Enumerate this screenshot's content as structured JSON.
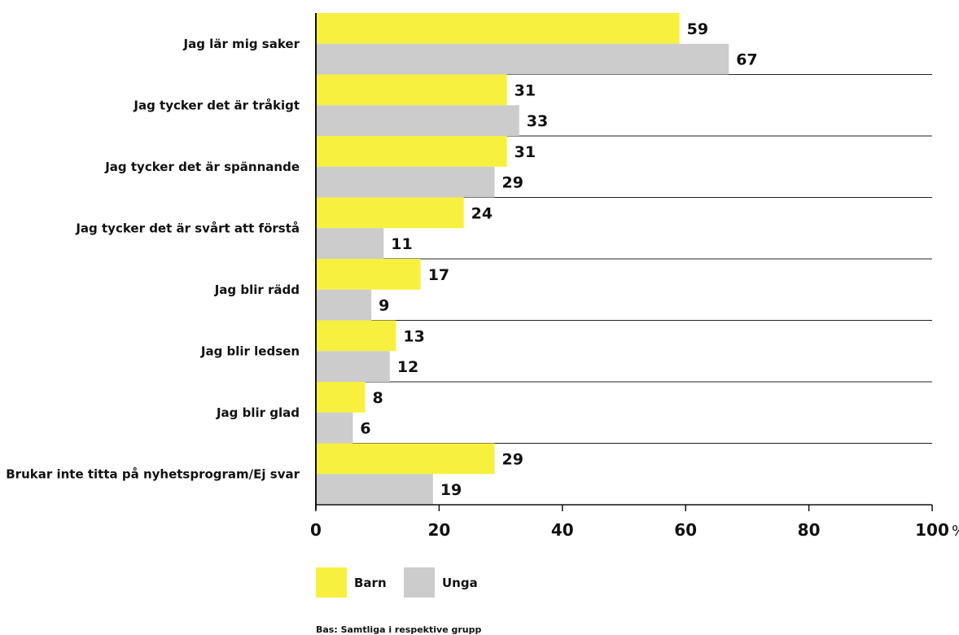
{
  "chart_data": {
    "type": "bar",
    "orientation": "horizontal",
    "categories": [
      "Jag lär mig saker",
      "Jag tycker det är tråkigt",
      "Jag tycker det är spännande",
      "Jag tycker det är svårt att förstå",
      "Jag blir rädd",
      "Jag blir ledsen",
      "Jag blir glad",
      "Brukar inte titta på nyhetsprogram/Ej svar"
    ],
    "series": [
      {
        "name": "Barn",
        "color": "#f7f03e",
        "values": [
          59,
          31,
          31,
          24,
          17,
          13,
          8,
          29
        ]
      },
      {
        "name": "Unga",
        "color": "#cccccc",
        "values": [
          67,
          33,
          29,
          11,
          9,
          12,
          6,
          19
        ]
      }
    ],
    "xlim": [
      0,
      100
    ],
    "xticks": [
      "0",
      "20",
      "40",
      "60",
      "80",
      "100"
    ],
    "x_unit": "%",
    "grid": false,
    "legend_position": "bottom-left",
    "note": "Bas: Samtliga i respektive grupp"
  }
}
